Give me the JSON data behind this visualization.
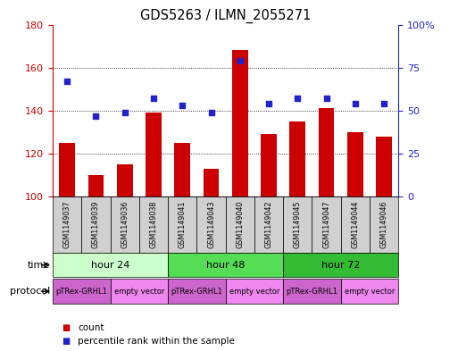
{
  "title": "GDS5263 / ILMN_2055271",
  "samples": [
    "GSM1149037",
    "GSM1149039",
    "GSM1149036",
    "GSM1149038",
    "GSM1149041",
    "GSM1149043",
    "GSM1149040",
    "GSM1149042",
    "GSM1149045",
    "GSM1149047",
    "GSM1149044",
    "GSM1149046"
  ],
  "counts": [
    125,
    110,
    115,
    139,
    125,
    113,
    168,
    129,
    135,
    141,
    130,
    128
  ],
  "percentile_ranks": [
    67,
    47,
    49,
    57,
    53,
    49,
    79,
    54,
    57,
    57,
    54,
    54
  ],
  "ylim_left": [
    100,
    180
  ],
  "ylim_right": [
    0,
    100
  ],
  "yticks_left": [
    100,
    120,
    140,
    160,
    180
  ],
  "yticks_right": [
    0,
    25,
    50,
    75,
    100
  ],
  "yticklabels_right": [
    "0",
    "25",
    "50",
    "75",
    "100%"
  ],
  "bar_color": "#cc0000",
  "dot_color": "#2222cc",
  "time_groups": [
    {
      "label": "hour 24",
      "start": 0,
      "end": 4,
      "color": "#ccffcc"
    },
    {
      "label": "hour 48",
      "start": 4,
      "end": 8,
      "color": "#55dd55"
    },
    {
      "label": "hour 72",
      "start": 8,
      "end": 12,
      "color": "#33bb33"
    }
  ],
  "protocol_groups": [
    {
      "label": "pTRex-GRHL1",
      "start": 0,
      "end": 2,
      "color": "#cc66cc"
    },
    {
      "label": "empty vector",
      "start": 2,
      "end": 4,
      "color": "#ee88ee"
    },
    {
      "label": "pTRex-GRHL1",
      "start": 4,
      "end": 6,
      "color": "#cc66cc"
    },
    {
      "label": "empty vector",
      "start": 6,
      "end": 8,
      "color": "#ee88ee"
    },
    {
      "label": "pTRex-GRHL1",
      "start": 8,
      "end": 10,
      "color": "#cc66cc"
    },
    {
      "label": "empty vector",
      "start": 10,
      "end": 12,
      "color": "#ee88ee"
    }
  ],
  "time_label": "time",
  "protocol_label": "protocol",
  "legend_count_label": "count",
  "legend_pct_label": "percentile rank within the sample",
  "sample_box_color": "#d0d0d0",
  "background_color": "#ffffff"
}
